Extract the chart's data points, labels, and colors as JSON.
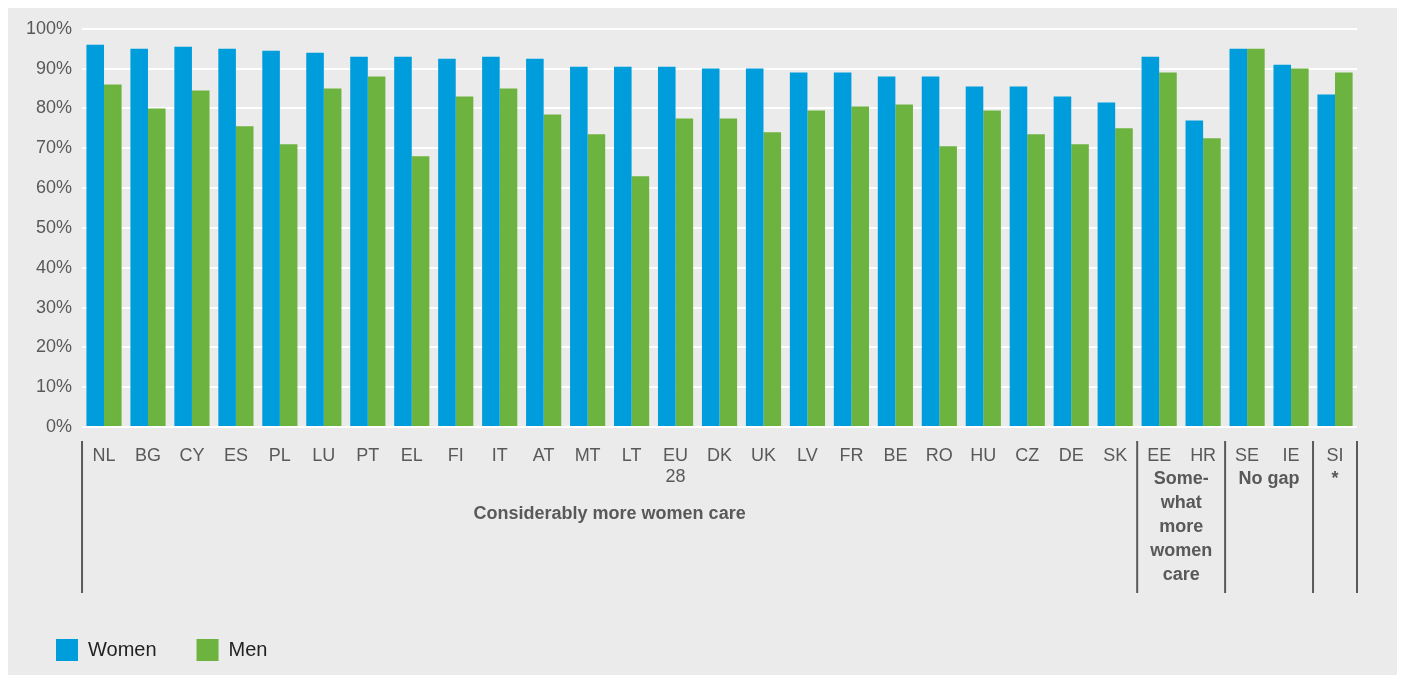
{
  "chart_data": {
    "type": "bar",
    "categories": [
      "NL",
      "BG",
      "CY",
      "ES",
      "PL",
      "LU",
      "PT",
      "EL",
      "FI",
      "IT",
      "AT",
      "MT",
      "LT",
      "EU 28",
      "DK",
      "UK",
      "LV",
      "FR",
      "BE",
      "RO",
      "HU",
      "CZ",
      "DE",
      "SK",
      "EE",
      "HR",
      "SE",
      "IE",
      "SI"
    ],
    "series": [
      {
        "name": "Women",
        "color": "#009ddc",
        "values": [
          96,
          95,
          95.5,
          95,
          94.5,
          94,
          93,
          93,
          92.5,
          93,
          92.5,
          90.5,
          90.5,
          90.5,
          90,
          90,
          89,
          89,
          88,
          88,
          85.5,
          85.5,
          83,
          81.5,
          93,
          77,
          95,
          91,
          83.5
        ]
      },
      {
        "name": "Men",
        "color": "#6db33f",
        "values": [
          86,
          80,
          84.5,
          75.5,
          71,
          85,
          88,
          68,
          83,
          85,
          78.5,
          73.5,
          63,
          77.5,
          77.5,
          74,
          79.5,
          80.5,
          81,
          70.5,
          79.5,
          73.5,
          71,
          75,
          89,
          72.5,
          95,
          90,
          89
        ]
      }
    ],
    "ylim": [
      0,
      100
    ],
    "yticks": [
      {
        "value": 0,
        "label": "0%"
      },
      {
        "value": 10,
        "label": "10%"
      },
      {
        "value": 20,
        "label": "20%"
      },
      {
        "value": 30,
        "label": "30%"
      },
      {
        "value": 40,
        "label": "40%"
      },
      {
        "value": 50,
        "label": "50%"
      },
      {
        "value": 60,
        "label": "60%"
      },
      {
        "value": 70,
        "label": "70%"
      },
      {
        "value": 80,
        "label": "80%"
      },
      {
        "value": 90,
        "label": "90%"
      },
      {
        "value": 100,
        "label": "100%"
      }
    ],
    "grid": "y",
    "legend": "bottom left",
    "annotations": [
      "Considerably more women care",
      "Some-what more women care",
      "No gap",
      "*"
    ]
  }
}
